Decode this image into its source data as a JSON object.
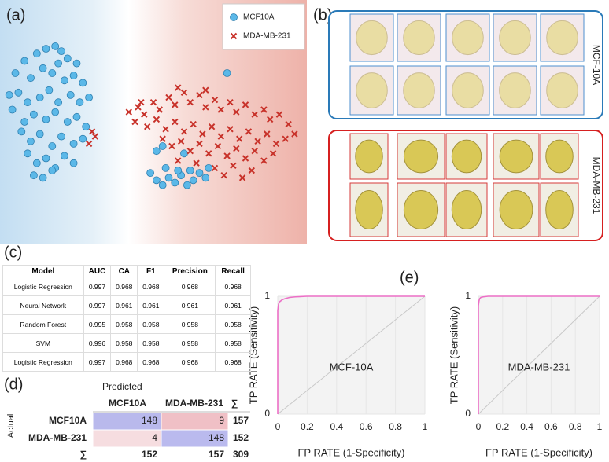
{
  "panel_labels": [
    "(a)",
    "(b)",
    "(c)",
    "(d)",
    "(e)"
  ],
  "chart_data": [
    {
      "type": "scatter",
      "xlim": [
        0,
        100
      ],
      "ylim": [
        0,
        100
      ],
      "legend": "upper right",
      "series": [
        {
          "name": "MCF10A",
          "color": "#5bb8e8",
          "marker": "circle",
          "x": [
            5,
            8,
            12,
            15,
            18,
            20,
            22,
            25,
            10,
            14,
            17,
            21,
            24,
            27,
            6,
            9,
            13,
            16,
            19,
            23,
            26,
            4,
            8,
            11,
            15,
            18,
            22,
            25,
            28,
            7,
            10,
            13,
            17,
            20,
            24,
            27,
            9,
            12,
            15,
            18,
            21,
            24,
            11,
            14,
            17,
            3,
            19,
            29,
            49,
            51,
            53,
            55,
            57,
            59,
            61,
            63,
            65,
            67,
            68,
            58,
            54,
            62,
            60,
            51,
            53,
            74
          ],
          "values": [
            70,
            75,
            78,
            80,
            81,
            79,
            76,
            74,
            68,
            72,
            70,
            67,
            69,
            66,
            62,
            58,
            60,
            63,
            58,
            61,
            58,
            55,
            50,
            53,
            51,
            54,
            50,
            52,
            48,
            46,
            42,
            45,
            40,
            44,
            41,
            43,
            37,
            33,
            35,
            31,
            36,
            33,
            28,
            27,
            30,
            61,
            74,
            60,
            29,
            26,
            24,
            27,
            25,
            28,
            24,
            26,
            29,
            27,
            31,
            30,
            31,
            30,
            37,
            38,
            40,
            70
          ]
        },
        {
          "name": "MDA-MB-231",
          "color": "#c8322a",
          "marker": "x",
          "x": [
            31,
            29,
            30,
            42,
            45,
            47,
            50,
            52,
            55,
            57,
            60,
            62,
            65,
            67,
            70,
            72,
            75,
            77,
            80,
            83,
            86,
            88,
            91,
            94,
            96,
            44,
            48,
            51,
            54,
            57,
            60,
            63,
            66,
            69,
            72,
            75,
            78,
            81,
            84,
            87,
            90,
            93,
            53,
            56,
            59,
            62,
            65,
            68,
            71,
            74,
            77,
            80,
            83,
            86,
            89,
            58,
            64,
            70,
            76,
            82,
            73,
            79,
            67,
            58,
            46
          ],
          "values": [
            44,
            41,
            46,
            54,
            56,
            53,
            58,
            55,
            60,
            57,
            62,
            58,
            61,
            56,
            59,
            55,
            58,
            54,
            57,
            53,
            55,
            51,
            53,
            49,
            45,
            50,
            48,
            51,
            47,
            50,
            46,
            49,
            45,
            48,
            44,
            47,
            43,
            46,
            42,
            45,
            41,
            43,
            43,
            40,
            42,
            38,
            41,
            37,
            40,
            36,
            39,
            35,
            38,
            34,
            37,
            34,
            33,
            31,
            32,
            30,
            28,
            27,
            63,
            64,
            58
          ]
        }
      ]
    },
    {
      "type": "line",
      "annotation": "MCF-10A",
      "xlabel": "FP RATE (1-Specificity)",
      "ylabel": "TP RATE (Sensitivity)",
      "xlim": [
        0,
        1
      ],
      "ylim": [
        0,
        1
      ],
      "xticks": [
        0,
        0.2,
        0.4,
        0.6,
        0.8,
        1
      ],
      "yticks": [
        0,
        1
      ],
      "x": [
        0,
        0,
        0.005,
        0.01,
        0.02,
        0.03,
        0.05,
        0.08,
        0.12,
        0.2,
        1
      ],
      "series": [
        {
          "color": "#ec6fc6",
          "values": [
            0,
            0.88,
            0.93,
            0.95,
            0.96,
            0.97,
            0.98,
            0.99,
            0.995,
            1,
            1
          ]
        }
      ]
    },
    {
      "type": "line",
      "annotation": "MDA-MB-231",
      "xlabel": "FP RATE (1-Specificity)",
      "ylabel": "TP RATE (Sensitivity)",
      "xlim": [
        0,
        1
      ],
      "ylim": [
        0,
        1
      ],
      "xticks": [
        0,
        0.2,
        0.4,
        0.6,
        0.8,
        1
      ],
      "yticks": [
        0,
        1
      ],
      "x": [
        0,
        0,
        0.005,
        0.01,
        0.02,
        0.04,
        0.08,
        0.15,
        1
      ],
      "series": [
        {
          "color": "#ec6fc6",
          "values": [
            0,
            0.92,
            0.96,
            0.98,
            0.99,
            0.995,
            1,
            1,
            1
          ]
        }
      ]
    }
  ],
  "cell_images": {
    "groups": [
      "MCF-10A",
      "MDA-MB-231"
    ]
  },
  "table": {
    "header": [
      "Model",
      "AUC",
      "CA",
      "F1",
      "Precision",
      "Recall"
    ],
    "rows": [
      [
        "Logistic Regression",
        0.997,
        0.968,
        0.968,
        0.968,
        0.968
      ],
      [
        "Neural Network",
        0.997,
        0.961,
        0.961,
        0.961,
        0.961
      ],
      [
        "Random Forest",
        0.995,
        0.958,
        0.958,
        0.958,
        0.958
      ],
      [
        "SVM",
        0.996,
        0.958,
        0.958,
        0.958,
        0.958
      ],
      [
        "Logistic Regression",
        0.997,
        0.968,
        0.968,
        0.968,
        0.968
      ]
    ]
  },
  "confusion": {
    "predicted_label": "Predicted",
    "actual_label": "Actual",
    "columns": [
      "MCF10A",
      "MDA-MB-231",
      "∑"
    ],
    "rows": [
      {
        "label": "MCF10A",
        "values": [
          148,
          9,
          157
        ],
        "cell_colors": [
          "#b9b9ec",
          "#f0c0c6"
        ]
      },
      {
        "label": "MDA-MB-231",
        "values": [
          4,
          148,
          152
        ],
        "cell_colors": [
          "#f6dde0",
          "#babaee"
        ]
      }
    ],
    "total": {
      "label": "∑",
      "values": [
        152,
        157,
        309
      ]
    }
  }
}
